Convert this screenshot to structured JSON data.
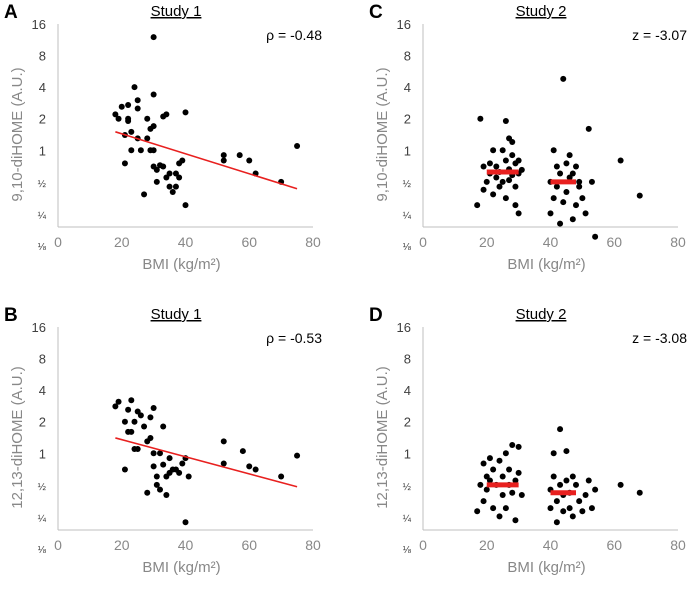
{
  "chart_data": [
    {
      "id": "A",
      "type": "scatter",
      "panel_label": "A",
      "title": "Study 1",
      "stat": "ρ = -0.48",
      "xlabel": "BMI (kg/m²)",
      "ylabel": "9,10-diHOME  (A.U.)",
      "xlim": [
        0,
        80
      ],
      "xticks": [
        "0",
        "20",
        "40",
        "60",
        "80"
      ],
      "yscale": "log2",
      "ylim": [
        0.125,
        16
      ],
      "yticks": [
        "16",
        "8",
        "4",
        "2",
        "1",
        "½",
        "¼",
        "⅛"
      ],
      "points": [
        [
          18,
          2.2
        ],
        [
          19,
          2.0
        ],
        [
          20,
          2.6
        ],
        [
          21,
          1.4
        ],
        [
          21,
          0.75
        ],
        [
          22,
          2.0
        ],
        [
          22,
          1.9
        ],
        [
          22,
          2.7
        ],
        [
          23,
          1.5
        ],
        [
          23,
          1.0
        ],
        [
          24,
          4.0
        ],
        [
          25,
          1.3
        ],
        [
          25,
          2.5
        ],
        [
          25,
          3.0
        ],
        [
          26,
          1.0
        ],
        [
          27,
          0.38
        ],
        [
          28,
          2.0
        ],
        [
          28,
          1.3
        ],
        [
          29,
          1.0
        ],
        [
          29,
          1.6
        ],
        [
          30,
          1.0
        ],
        [
          30,
          1.7
        ],
        [
          30,
          3.4
        ],
        [
          30,
          0.7
        ],
        [
          31,
          0.5
        ],
        [
          31,
          0.65
        ],
        [
          32,
          0.72
        ],
        [
          33,
          0.7
        ],
        [
          33,
          2.1
        ],
        [
          34,
          2.2
        ],
        [
          34,
          0.55
        ],
        [
          35,
          0.6
        ],
        [
          35,
          0.45
        ],
        [
          36,
          0.4
        ],
        [
          37,
          0.45
        ],
        [
          37,
          0.6
        ],
        [
          38,
          0.55
        ],
        [
          38,
          0.75
        ],
        [
          39,
          0.8
        ],
        [
          40,
          2.3
        ],
        [
          40,
          0.3
        ],
        [
          52,
          0.9
        ],
        [
          52,
          0.8
        ],
        [
          57,
          0.9
        ],
        [
          60,
          0.8
        ],
        [
          62,
          0.6
        ],
        [
          70,
          0.5
        ],
        [
          75,
          1.1
        ],
        [
          30,
          12.0
        ]
      ],
      "trend": {
        "x": [
          18,
          75
        ],
        "y": [
          1.5,
          0.43
        ],
        "color": "#e8201f"
      }
    },
    {
      "id": "C",
      "type": "scatter",
      "panel_label": "C",
      "title": "Study 2",
      "stat": "z = -3.07",
      "xlabel": "BMI (kg/m²)",
      "ylabel": "9,10-diHOME  (A.U.)",
      "xlim": [
        0,
        80
      ],
      "xticks": [
        "0",
        "20",
        "40",
        "60",
        "80"
      ],
      "yscale": "log2",
      "ylim": [
        0.125,
        16
      ],
      "yticks": [
        "16",
        "8",
        "4",
        "2",
        "1",
        "½",
        "¼",
        "⅛"
      ],
      "points": [
        [
          18,
          2.0
        ],
        [
          17,
          0.3
        ],
        [
          19,
          0.7
        ],
        [
          19,
          0.42
        ],
        [
          20,
          0.5
        ],
        [
          21,
          0.6
        ],
        [
          21,
          0.75
        ],
        [
          22,
          1.0
        ],
        [
          22,
          0.38
        ],
        [
          23,
          0.55
        ],
        [
          23,
          0.7
        ],
        [
          24,
          0.62
        ],
        [
          24,
          0.45
        ],
        [
          25,
          0.5
        ],
        [
          25,
          1.0
        ],
        [
          26,
          0.8
        ],
        [
          26,
          0.35
        ],
        [
          26,
          1.9
        ],
        [
          27,
          1.3
        ],
        [
          27,
          0.52
        ],
        [
          27,
          0.66
        ],
        [
          28,
          1.2
        ],
        [
          28,
          0.9
        ],
        [
          28,
          0.58
        ],
        [
          29,
          0.3
        ],
        [
          29,
          0.75
        ],
        [
          29,
          0.45
        ],
        [
          30,
          0.8
        ],
        [
          30,
          0.6
        ],
        [
          30,
          0.25
        ],
        [
          31,
          0.65
        ],
        [
          40,
          0.5
        ],
        [
          40,
          0.25
        ],
        [
          41,
          1.0
        ],
        [
          41,
          0.35
        ],
        [
          42,
          0.7
        ],
        [
          42,
          0.45
        ],
        [
          43,
          0.2
        ],
        [
          43,
          0.6
        ],
        [
          44,
          4.8
        ],
        [
          44,
          0.32
        ],
        [
          45,
          0.75
        ],
        [
          45,
          0.4
        ],
        [
          46,
          0.9
        ],
        [
          46,
          0.55
        ],
        [
          47,
          0.22
        ],
        [
          47,
          0.6
        ],
        [
          48,
          0.3
        ],
        [
          48,
          0.7
        ],
        [
          49,
          0.45
        ],
        [
          49,
          0.5
        ],
        [
          50,
          0.35
        ],
        [
          51,
          0.25
        ],
        [
          52,
          1.6
        ],
        [
          53,
          0.5
        ],
        [
          54,
          0.15
        ],
        [
          62,
          0.8
        ],
        [
          68,
          0.37
        ]
      ],
      "medians": [
        {
          "x": [
            20,
            30
          ],
          "y": 0.62,
          "color": "#e8201f"
        },
        {
          "x": [
            40,
            48
          ],
          "y": 0.5,
          "color": "#e8201f"
        }
      ]
    },
    {
      "id": "B",
      "type": "scatter",
      "panel_label": "B",
      "title": "Study 1",
      "stat": "ρ = -0.53",
      "xlabel": "BMI (kg/m²)",
      "ylabel": "12,13-diHOME  (A.U.)",
      "xlim": [
        0,
        80
      ],
      "xticks": [
        "0",
        "20",
        "40",
        "60",
        "80"
      ],
      "yscale": "log2",
      "ylim": [
        0.125,
        16
      ],
      "yticks": [
        "16",
        "8",
        "4",
        "2",
        "1",
        "½",
        "¼",
        "⅛"
      ],
      "points": [
        [
          18,
          2.8
        ],
        [
          19,
          3.1
        ],
        [
          21,
          2.0
        ],
        [
          21,
          0.7
        ],
        [
          22,
          2.6
        ],
        [
          22,
          1.6
        ],
        [
          23,
          1.6
        ],
        [
          23,
          3.2
        ],
        [
          24,
          1.1
        ],
        [
          24,
          2.0
        ],
        [
          25,
          2.5
        ],
        [
          25,
          1.1
        ],
        [
          26,
          2.3
        ],
        [
          27,
          1.8
        ],
        [
          28,
          1.3
        ],
        [
          28,
          0.42
        ],
        [
          29,
          2.2
        ],
        [
          29,
          1.4
        ],
        [
          30,
          2.7
        ],
        [
          30,
          1.0
        ],
        [
          30,
          0.75
        ],
        [
          31,
          0.6
        ],
        [
          31,
          0.5
        ],
        [
          32,
          0.45
        ],
        [
          32,
          1.0
        ],
        [
          33,
          1.8
        ],
        [
          33,
          0.78
        ],
        [
          34,
          0.6
        ],
        [
          34,
          0.4
        ],
        [
          35,
          0.65
        ],
        [
          35,
          0.9
        ],
        [
          36,
          0.7
        ],
        [
          37,
          0.7
        ],
        [
          38,
          0.65
        ],
        [
          39,
          0.8
        ],
        [
          40,
          0.9
        ],
        [
          40,
          0.22
        ],
        [
          41,
          0.6
        ],
        [
          52,
          1.3
        ],
        [
          52,
          0.8
        ],
        [
          58,
          1.05
        ],
        [
          60,
          0.75
        ],
        [
          62,
          0.7
        ],
        [
          70,
          0.6
        ],
        [
          75,
          0.95
        ]
      ],
      "trend": {
        "x": [
          18,
          75
        ],
        "y": [
          1.4,
          0.48
        ],
        "color": "#e8201f"
      }
    },
    {
      "id": "D",
      "type": "scatter",
      "panel_label": "D",
      "title": "Study 2",
      "stat": "z = -3.08",
      "xlabel": "BMI (kg/m²)",
      "ylabel": "12,13-diHOME  (A.U.)",
      "xlim": [
        0,
        80
      ],
      "xticks": [
        "0",
        "20",
        "40",
        "60",
        "80"
      ],
      "yscale": "log2",
      "ylim": [
        0.125,
        16
      ],
      "yticks": [
        "16",
        "8",
        "4",
        "2",
        "1",
        "½",
        "¼",
        "⅛"
      ],
      "points": [
        [
          17,
          0.28
        ],
        [
          18,
          0.5
        ],
        [
          19,
          0.8
        ],
        [
          19,
          0.35
        ],
        [
          20,
          0.6
        ],
        [
          20,
          0.45
        ],
        [
          21,
          0.9
        ],
        [
          21,
          0.55
        ],
        [
          22,
          0.3
        ],
        [
          22,
          0.7
        ],
        [
          23,
          0.5
        ],
        [
          24,
          0.25
        ],
        [
          24,
          0.85
        ],
        [
          25,
          0.6
        ],
        [
          25,
          0.4
        ],
        [
          26,
          1.0
        ],
        [
          26,
          0.3
        ],
        [
          27,
          0.5
        ],
        [
          27,
          0.7
        ],
        [
          28,
          1.2
        ],
        [
          28,
          0.42
        ],
        [
          29,
          0.55
        ],
        [
          29,
          0.23
        ],
        [
          30,
          1.15
        ],
        [
          30,
          0.65
        ],
        [
          31,
          0.4
        ],
        [
          40,
          0.45
        ],
        [
          40,
          0.3
        ],
        [
          41,
          0.6
        ],
        [
          41,
          1.0
        ],
        [
          42,
          0.35
        ],
        [
          42,
          0.22
        ],
        [
          43,
          0.5
        ],
        [
          43,
          1.7
        ],
        [
          44,
          0.4
        ],
        [
          44,
          0.28
        ],
        [
          45,
          1.05
        ],
        [
          45,
          0.55
        ],
        [
          46,
          0.3
        ],
        [
          46,
          0.42
        ],
        [
          47,
          0.6
        ],
        [
          47,
          0.25
        ],
        [
          48,
          0.5
        ],
        [
          49,
          0.35
        ],
        [
          50,
          0.28
        ],
        [
          51,
          0.4
        ],
        [
          52,
          0.55
        ],
        [
          53,
          0.3
        ],
        [
          54,
          0.45
        ],
        [
          62,
          0.5
        ],
        [
          68,
          0.42
        ]
      ],
      "medians": [
        {
          "x": [
            20,
            30
          ],
          "y": 0.5,
          "color": "#e8201f"
        },
        {
          "x": [
            40,
            48
          ],
          "y": 0.42,
          "color": "#e8201f"
        }
      ]
    }
  ]
}
